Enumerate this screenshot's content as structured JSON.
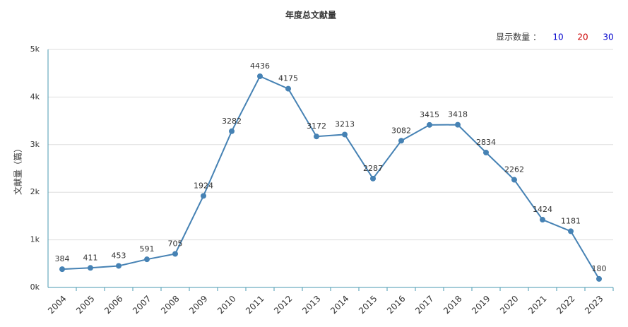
{
  "chart_data": {
    "type": "line",
    "title": "年度总文献量",
    "y_label": "文献量（篇）",
    "categories": [
      "2004",
      "2005",
      "2006",
      "2007",
      "2008",
      "2009",
      "2010",
      "2011",
      "2012",
      "2013",
      "2014",
      "2015",
      "2016",
      "2017",
      "2018",
      "2019",
      "2020",
      "2021",
      "2022",
      "2023"
    ],
    "series": [
      {
        "name": "文献量",
        "color": "#4682b4",
        "values": [
          384,
          411,
          453,
          591,
          705,
          1924,
          3282,
          4436,
          4175,
          3172,
          3213,
          2287,
          3082,
          3415,
          3418,
          2834,
          2262,
          1424,
          1181,
          180
        ]
      }
    ],
    "ylim": [
      0,
      5000
    ],
    "yticks": [
      {
        "value": 0,
        "label": "0k"
      },
      {
        "value": 1000,
        "label": "1k"
      },
      {
        "value": 2000,
        "label": "2k"
      },
      {
        "value": 3000,
        "label": "3k"
      },
      {
        "value": 4000,
        "label": "4k"
      },
      {
        "value": 5000,
        "label": "5k"
      }
    ],
    "grid": true
  },
  "controls": {
    "label": "显示数量 ：",
    "options": [
      "10",
      "20",
      "30"
    ]
  }
}
